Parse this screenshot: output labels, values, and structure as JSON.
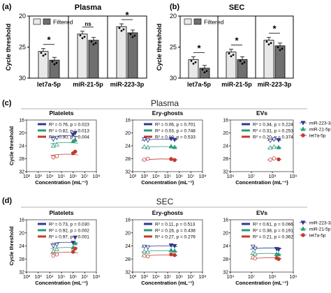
{
  "panel_letters": {
    "a": "(a)",
    "b": "(b)",
    "c": "(c)",
    "d": "(d)"
  },
  "section_titles": {
    "c": "Plasma",
    "d": "SEC"
  },
  "colors": {
    "unfiltered": "#e8e8e8",
    "filtered": "#6f6f6f",
    "mir223": "#303a8c",
    "mir21": "#2c9a78",
    "let7a": "#c23b2e",
    "rule": "#999999"
  },
  "chart_data": [
    {
      "type": "bar",
      "panel": "(a)",
      "title": "Plasma",
      "ylabel": "Cycle threshold",
      "ylim": [
        30,
        20
      ],
      "yticks": [
        "20",
        "25",
        "30"
      ],
      "categories": [
        "let7a-5p",
        "miR-21-5p",
        "miR-223-3p"
      ],
      "legend": [
        "Filtered"
      ],
      "series": [
        {
          "values": [
            25.7,
            22.9,
            21.7
          ]
        },
        {
          "name": "Filtered",
          "values": [
            27.1,
            23.9,
            22.7
          ]
        }
      ],
      "significance": [
        "*",
        "ns",
        "*"
      ]
    },
    {
      "type": "bar",
      "panel": "(b)",
      "title": "SEC",
      "ylabel": "Cycle threshold",
      "ylim": [
        30,
        20
      ],
      "yticks": [
        "20",
        "25",
        "30"
      ],
      "categories": [
        "let7a-5p",
        "miR-21-5p",
        "miR-223-3p"
      ],
      "legend": [
        "Filtered"
      ],
      "series": [
        {
          "values": [
            27.0,
            25.8,
            23.9
          ]
        },
        {
          "name": "Filtered",
          "values": [
            28.4,
            27.0,
            24.8
          ]
        }
      ],
      "significance": [
        "*",
        "*",
        "*"
      ]
    },
    {
      "type": "scatter",
      "panel": "(c)",
      "section": "Plasma",
      "title": "Platelets",
      "ylabel": "Cycle threshold",
      "xlabel": "Concentration (mL⁻¹)",
      "ylim": [
        32,
        16
      ],
      "yticks": [
        "16",
        "20",
        "24",
        "28",
        "32"
      ],
      "xlim_log10": [
        2,
        8
      ],
      "xticks": [
        "10²",
        "10³",
        "10⁴",
        "10⁵",
        "10⁶",
        "10⁷",
        "10⁸"
      ],
      "stats": [
        "R² = 0.76, p = 0.023",
        "R² = 0.82, p = 0.013",
        "R² = 0.90, p = 0.004"
      ],
      "series": [
        {
          "points": [
            [
              20000,
              22.0
            ],
            [
              40000,
              21.5
            ],
            [
              1000000,
              20.5
            ],
            [
              1500000,
              20.0
            ]
          ]
        },
        {
          "points": [
            [
              20000,
              24.0
            ],
            [
              40000,
              23.6
            ],
            [
              1000000,
              22.6
            ],
            [
              1500000,
              22.2
            ]
          ]
        },
        {
          "points": [
            [
              20000,
              27.6
            ],
            [
              40000,
              27.2
            ],
            [
              1000000,
              26.3
            ],
            [
              1500000,
              25.8
            ]
          ]
        }
      ]
    },
    {
      "type": "scatter",
      "panel": "(c)",
      "section": "Plasma",
      "title": "Ery-ghosts",
      "xlabel": "Concentration (mL⁻¹)",
      "ylim": [
        32,
        16
      ],
      "yticks": [
        "16",
        "20",
        "24",
        "28",
        "32"
      ],
      "xlim_log10": [
        2,
        8
      ],
      "xticks": [
        "10²",
        "10³",
        "10⁴",
        "10⁵",
        "10⁶",
        "10⁷",
        "10⁸"
      ],
      "stats": [
        "R² = 0.06, p = 0.701",
        "R² = 0.03, p = 0.748",
        "R² = 0.10, p = 0.533"
      ],
      "series": [
        {
          "points": [
            [
              1000,
              22.0
            ],
            [
              2000,
              22.3
            ],
            [
              200000,
              21.8
            ],
            [
              400000,
              22.1
            ]
          ]
        },
        {
          "points": [
            [
              1000,
              24.3
            ],
            [
              2000,
              24.5
            ],
            [
              200000,
              24.2
            ],
            [
              400000,
              24.4
            ]
          ]
        },
        {
          "points": [
            [
              1000,
              28.3
            ],
            [
              2000,
              28.0
            ],
            [
              200000,
              28.1
            ],
            [
              400000,
              28.4
            ]
          ]
        }
      ]
    },
    {
      "type": "scatter",
      "panel": "(c)",
      "section": "Plasma",
      "title": "EVs",
      "xlabel": "Concentration (mL⁻¹)",
      "ylim": [
        32,
        16
      ],
      "yticks": [
        "16",
        "20",
        "24",
        "28",
        "32"
      ],
      "xlim_log10": [
        6,
        9
      ],
      "xticks": [
        "10⁶",
        "10⁷",
        "10⁸",
        "10⁹"
      ],
      "stats": [
        "R² = 0.34, p = 0.224",
        "R² = 0.31, p = 0.253",
        "R² = 0.20, p = 0.374"
      ],
      "legend": [
        "miR-223-3p",
        "miR-21-5p",
        "let7a-5p"
      ],
      "series": [
        {
          "name": "miR-223-3p",
          "points": [
            [
              80000000,
              22.4
            ],
            [
              120000000,
              22.0
            ],
            [
              200000000,
              22.2
            ]
          ]
        },
        {
          "name": "miR-21-5p",
          "points": [
            [
              80000000,
              24.6
            ],
            [
              120000000,
              24.3
            ],
            [
              200000000,
              24.5
            ]
          ]
        },
        {
          "name": "let7a-5p",
          "points": [
            [
              80000000,
              28.3
            ],
            [
              120000000,
              27.9
            ],
            [
              200000000,
              28.2
            ]
          ]
        }
      ]
    },
    {
      "type": "scatter",
      "panel": "(d)",
      "section": "SEC",
      "title": "Platelets",
      "ylabel": "Cycle threshold",
      "xlabel": "Concentration (mL⁻¹)",
      "ylim": [
        32,
        16
      ],
      "yticks": [
        "16",
        "20",
        "24",
        "28",
        "32"
      ],
      "xlim_log10": [
        2,
        8
      ],
      "xticks": [
        "10²",
        "10³",
        "10⁴",
        "10⁵",
        "10⁶",
        "10⁷",
        "10⁸"
      ],
      "stats": [
        "R² = 0.73, p = 0.030",
        "R² = 0.92, p = 0.002",
        "R² = 0.97, p = 0.001"
      ],
      "series": [
        {
          "points": [
            [
              20000,
              24.0
            ],
            [
              40000,
              23.6
            ],
            [
              1000000,
              23.0
            ],
            [
              1500000,
              21.4
            ]
          ]
        },
        {
          "points": [
            [
              20000,
              25.6
            ],
            [
              40000,
              25.0
            ],
            [
              1000000,
              24.5
            ],
            [
              1500000,
              23.2
            ]
          ]
        },
        {
          "points": [
            [
              20000,
              27.0
            ],
            [
              40000,
              26.6
            ],
            [
              1000000,
              25.8
            ],
            [
              1500000,
              24.8
            ]
          ]
        }
      ]
    },
    {
      "type": "scatter",
      "panel": "(d)",
      "section": "SEC",
      "title": "Ery-ghosts",
      "xlabel": "Concentration (mL⁻¹)",
      "ylim": [
        32,
        16
      ],
      "yticks": [
        "16",
        "20",
        "24",
        "28",
        "32"
      ],
      "xlim_log10": [
        2,
        8
      ],
      "xticks": [
        "10²",
        "10³",
        "10⁴",
        "10⁵",
        "10⁶",
        "10⁷",
        "10⁸"
      ],
      "stats": [
        "R² = 0.11, p = 0.513",
        "R² = 0.16, p = 0.438",
        "R² = 0.27, p = 0.276"
      ],
      "series": [
        {
          "points": [
            [
              1000,
              24.2
            ],
            [
              2000,
              24.4
            ],
            [
              200000,
              23.8
            ],
            [
              400000,
              24.0
            ]
          ]
        },
        {
          "points": [
            [
              1000,
              25.7
            ],
            [
              2000,
              25.8
            ],
            [
              200000,
              25.3
            ],
            [
              400000,
              25.5
            ]
          ]
        },
        {
          "points": [
            [
              1000,
              27.0
            ],
            [
              2000,
              27.2
            ],
            [
              200000,
              26.6
            ],
            [
              400000,
              26.8
            ]
          ]
        }
      ]
    },
    {
      "type": "scatter",
      "panel": "(d)",
      "section": "SEC",
      "title": "EVs",
      "xlabel": "Concentration (mL⁻¹)",
      "ylim": [
        32,
        16
      ],
      "yticks": [
        "16",
        "20",
        "24",
        "28",
        "32"
      ],
      "xlim_log10": [
        6,
        9
      ],
      "xticks": [
        "10⁶",
        "10⁷",
        "10⁸",
        "10⁹"
      ],
      "stats": [
        "R² = 0.61, p = 0.066",
        "R² = 0.38, p = 0.191",
        "R² = 0.21, p = 0.362"
      ],
      "legend": [
        "miR-223-3p",
        "miR-21-5p",
        "let7a-5p"
      ],
      "series": [
        {
          "name": "miR-223-3p",
          "points": [
            [
              12000000,
              24.2
            ],
            [
              15000000,
              24.8
            ],
            [
              160000000,
              24.9
            ],
            [
              200000000,
              25.1
            ]
          ]
        },
        {
          "name": "miR-21-5p",
          "points": [
            [
              12000000,
              26.1
            ],
            [
              15000000,
              26.4
            ],
            [
              160000000,
              26.5
            ],
            [
              200000000,
              26.6
            ]
          ]
        },
        {
          "name": "let7a-5p",
          "points": [
            [
              12000000,
              27.5
            ],
            [
              15000000,
              27.8
            ],
            [
              160000000,
              27.7
            ],
            [
              200000000,
              28.0
            ]
          ]
        }
      ]
    }
  ]
}
